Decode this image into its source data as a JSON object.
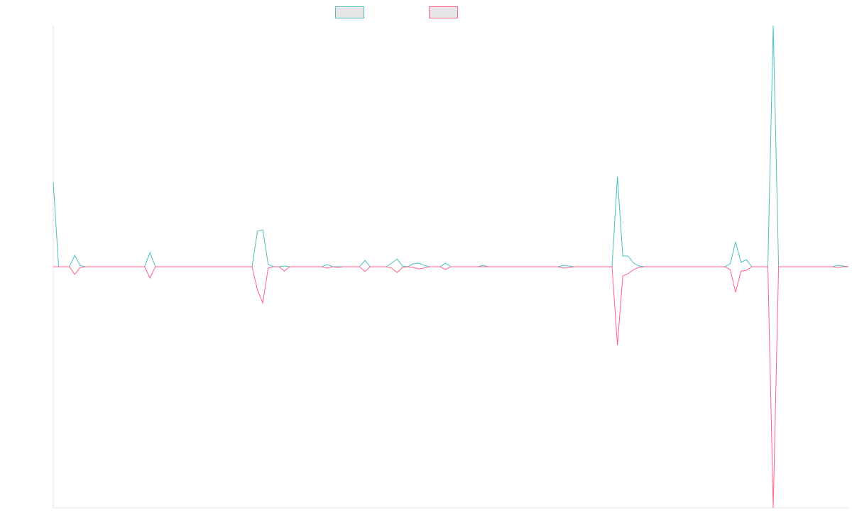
{
  "chart_data": {
    "type": "line",
    "ylim": [
      -100,
      100
    ],
    "series": [
      {
        "color": "#4bc0c0",
        "values": [
          35,
          0,
          0,
          0,
          4.7,
          0.5,
          0,
          0,
          0,
          0,
          0,
          0,
          0,
          0,
          0,
          0,
          0,
          0,
          5.9,
          0,
          0,
          0,
          0,
          0,
          0,
          0,
          0,
          0,
          0,
          0,
          0,
          0,
          0,
          0,
          0,
          0,
          0,
          0,
          14.7,
          15.3,
          1,
          0,
          0,
          0.3,
          0,
          0,
          0,
          0,
          0,
          0,
          0,
          0.9,
          0,
          0,
          0,
          0,
          0,
          0,
          2.6,
          0,
          0,
          0,
          0,
          1.5,
          3.2,
          0.3,
          0,
          1.2,
          1.5,
          0.6,
          0,
          0,
          0,
          1.5,
          0,
          0,
          0,
          0,
          0,
          0,
          0.6,
          0,
          0,
          0,
          0,
          0,
          0,
          0,
          0,
          0,
          0,
          0,
          0,
          0,
          0,
          0.6,
          0.3,
          0,
          0,
          0,
          0,
          0,
          0,
          0,
          0,
          37.4,
          4.4,
          4.4,
          1.5,
          0.3,
          0,
          0,
          0,
          0,
          0,
          0,
          0,
          0,
          0,
          0,
          0,
          0,
          0,
          0,
          0,
          0,
          1.2,
          10.3,
          1.8,
          2.9,
          0,
          0,
          0,
          0,
          100,
          0,
          0,
          0,
          0,
          0,
          0,
          0,
          0,
          0,
          0,
          0,
          0.6,
          0.3,
          0
        ]
      },
      {
        "color": "#ff6384",
        "values": [
          0,
          0,
          0,
          0,
          -3.2,
          -0.3,
          0,
          0,
          0,
          0,
          0,
          0,
          0,
          0,
          0,
          0,
          0,
          0,
          -4.7,
          0,
          0,
          0,
          0,
          0,
          0,
          0,
          0,
          0,
          0,
          0,
          0,
          0,
          0,
          0,
          0,
          0,
          0,
          0,
          -9.7,
          -15,
          -0.6,
          0,
          0,
          -1.8,
          0,
          0,
          0,
          0,
          0,
          0,
          0,
          -0.6,
          0,
          -0.3,
          0,
          0,
          0,
          0,
          -2,
          0,
          0,
          0,
          0,
          -0.6,
          -2.4,
          -0.3,
          0,
          -0.3,
          -0.9,
          -0.6,
          0,
          0,
          0,
          -1.2,
          0,
          0,
          0,
          0,
          0,
          0,
          0,
          0,
          0,
          0,
          0,
          0,
          0,
          0,
          0,
          0,
          0,
          0,
          0,
          0,
          0,
          -0.6,
          -0.3,
          0,
          0,
          0,
          0,
          0,
          0,
          0,
          0,
          -32.6,
          -3.8,
          -2.9,
          -1.2,
          -0.3,
          0,
          0,
          0,
          0,
          0,
          0,
          0,
          0,
          0,
          0,
          0,
          0,
          0,
          0,
          0,
          0,
          -1.2,
          -10.6,
          -1.8,
          -1.5,
          0,
          0,
          0,
          0,
          -100,
          0,
          0,
          0,
          0,
          0,
          0,
          0,
          0,
          0,
          0,
          0,
          -0.3,
          0,
          0
        ]
      }
    ]
  }
}
